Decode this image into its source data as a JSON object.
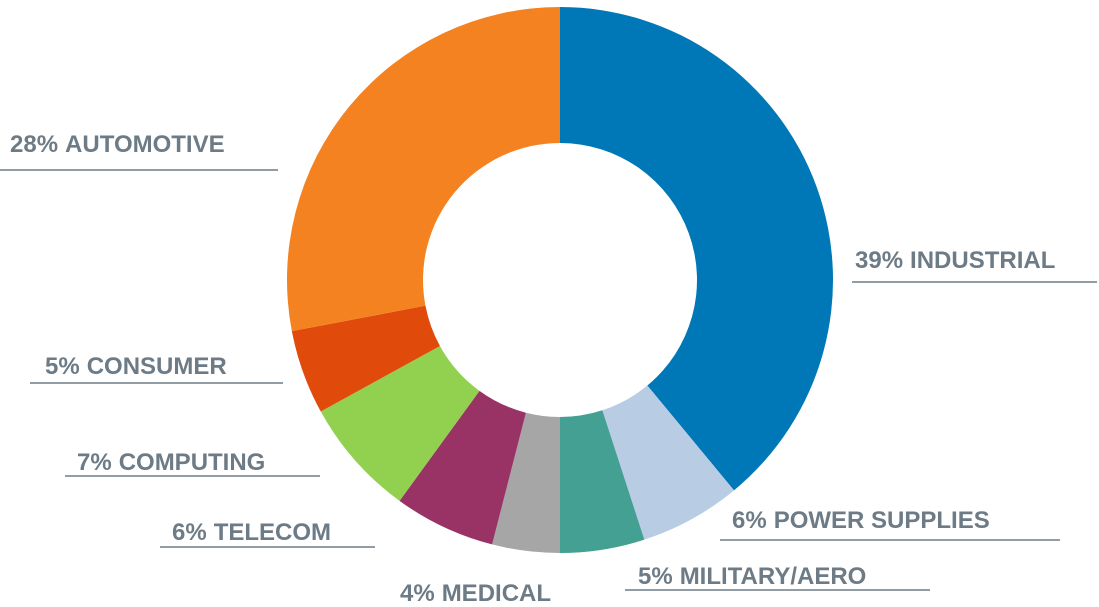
{
  "chart_data": {
    "type": "donut",
    "categories": [
      "INDUSTRIAL",
      "POWER SUPPLIES",
      "MILITARY/AERO",
      "MEDICAL",
      "TELECOM",
      "COMPUTING",
      "CONSUMER",
      "AUTOMOTIVE"
    ],
    "values": [
      39,
      6,
      5,
      4,
      6,
      7,
      5,
      28
    ],
    "value_labels": [
      "39%",
      "6%",
      "5%",
      "4%",
      "6%",
      "7%",
      "5%",
      "28%"
    ],
    "colors": [
      "#0077b6",
      "#b8cce4",
      "#43a093",
      "#a6a6a6",
      "#993366",
      "#92d050",
      "#e04a0a",
      "#f58220"
    ]
  }
}
